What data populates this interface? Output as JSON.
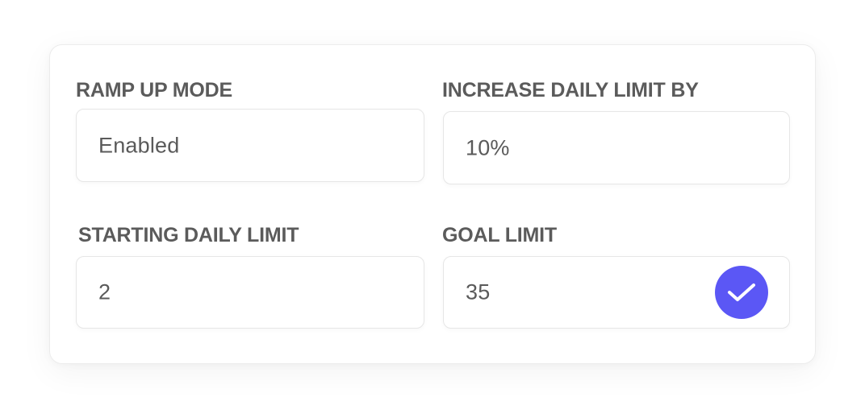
{
  "ramp_up_mode": {
    "label": "RAMP UP MODE",
    "value": "Enabled"
  },
  "increase_daily_limit": {
    "label": "INCREASE DAILY LIMIT BY",
    "value": "10%"
  },
  "starting_daily_limit": {
    "label": "STARTING DAILY LIMIT",
    "value": "2"
  },
  "goal_limit": {
    "label": "GOAL LIMIT",
    "value": "35",
    "confirm_icon": "check-icon"
  },
  "colors": {
    "accent": "#5b57f5",
    "label_text": "#5b5b5b",
    "value_text": "#5a5a5a"
  }
}
